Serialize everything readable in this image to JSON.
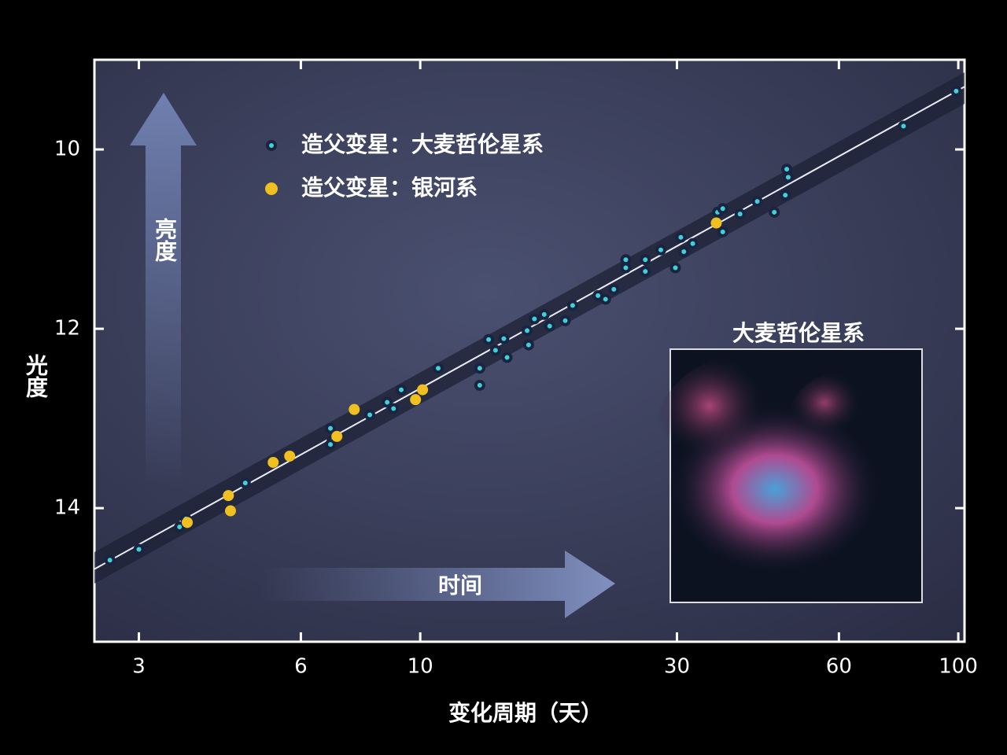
{
  "chart_data": {
    "type": "scatter",
    "x_label": "变化周期（天）",
    "y_label": "光度",
    "annotations": {
      "brightness_arrow": "亮度",
      "time_arrow": "时间",
      "inset_title": "大麦哲伦星系"
    },
    "log_x": true,
    "invert_y": true,
    "xlim": [
      2.48,
      102.7
    ],
    "ylim": [
      9,
      15.49
    ],
    "xticks": [
      3,
      6,
      10,
      30,
      60,
      100
    ],
    "yticks": [
      10,
      12,
      14
    ],
    "trend_line": {
      "x": [
        2.48,
        102.7
      ],
      "values": [
        14.68,
        9.3
      ],
      "color": "#e8ecf4"
    },
    "series": [
      {
        "name": "造父变星：大麦哲伦星系",
        "color": "#3fd0d8",
        "x": [
          2.65,
          3.0,
          3.57,
          3.67,
          4.73,
          6.81,
          6.86,
          6.81,
          8.06,
          8.68,
          8.92,
          9.22,
          10.8,
          12.9,
          12.9,
          13.4,
          13.8,
          14.3,
          14.5,
          15.8,
          15.9,
          16.3,
          17.0,
          17.4,
          18.6,
          19.2,
          21.4,
          22.1,
          22.9,
          24.1,
          24.1,
          26.2,
          26.2,
          28.0,
          29.8,
          30.5,
          30.9,
          32.1,
          35.7,
          36.5,
          36.5,
          39.3,
          42.3,
          45.5,
          47.7,
          48.0,
          48.3,
          79.1,
          99.1
        ],
        "values": [
          14.58,
          14.46,
          14.21,
          14.12,
          13.72,
          13.11,
          13.25,
          13.29,
          12.96,
          12.82,
          12.89,
          12.68,
          12.44,
          12.44,
          12.63,
          12.12,
          12.24,
          12.11,
          12.32,
          12.02,
          12.18,
          11.89,
          11.84,
          11.97,
          11.91,
          11.74,
          11.63,
          11.67,
          11.56,
          11.32,
          11.23,
          11.23,
          11.36,
          11.12,
          11.32,
          10.98,
          11.14,
          11.05,
          10.7,
          10.92,
          10.66,
          10.72,
          10.58,
          10.7,
          10.51,
          10.22,
          10.31,
          9.74,
          9.35
        ]
      },
      {
        "name": "造父变星：银河系",
        "color": "#f0c020",
        "x": [
          3.69,
          4.4,
          4.44,
          5.33,
          5.72,
          7.0,
          7.54,
          9.8,
          10.1,
          35.5
        ],
        "values": [
          14.16,
          13.86,
          14.03,
          13.49,
          13.42,
          13.2,
          12.9,
          12.79,
          12.68,
          10.82
        ]
      }
    ]
  }
}
